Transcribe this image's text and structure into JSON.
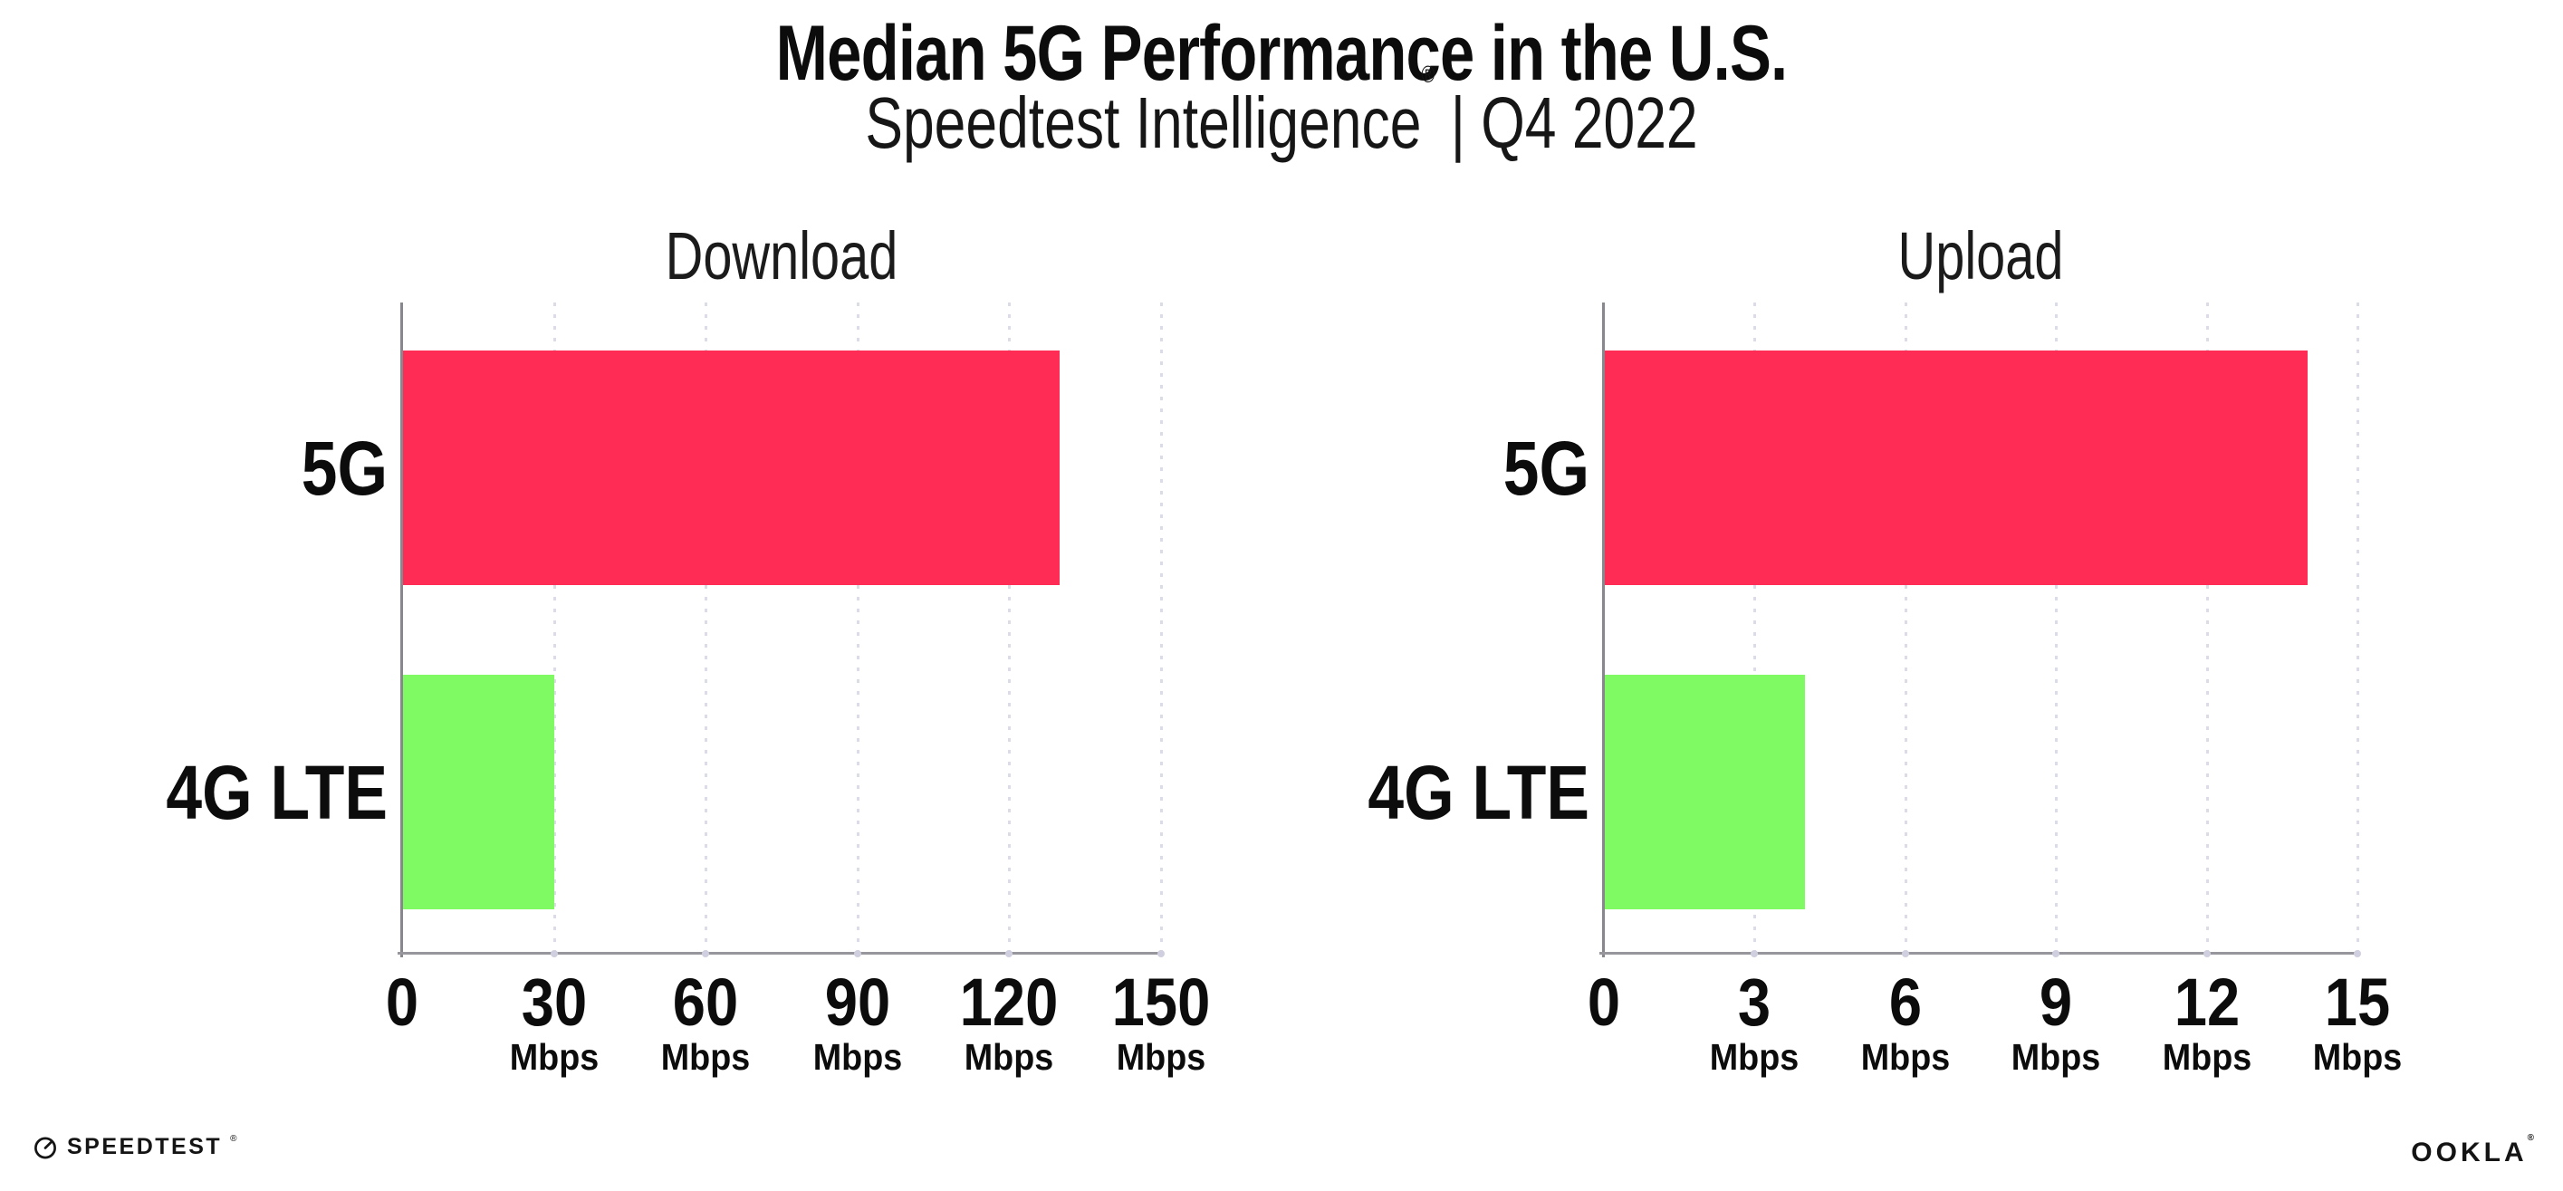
{
  "header": {
    "title": "Median 5G Performance in the U.S.",
    "subtitle_brand": "Speedtest Intelligence",
    "subtitle_reg": "®",
    "subtitle_rest": " | Q4 2022"
  },
  "chart_data": [
    {
      "type": "bar",
      "orientation": "horizontal",
      "title": "Download",
      "categories": [
        "5G",
        "4G LTE"
      ],
      "values": [
        130,
        30
      ],
      "value_unit": "Mbps",
      "xlim": [
        0,
        150
      ],
      "ticks": [
        0,
        30,
        60,
        90,
        120,
        150
      ],
      "tick_unit": "Mbps",
      "bar_colors": [
        "#ff2d56",
        "#80fa62"
      ],
      "grid": "dotted-vertical-lines",
      "legend": "none"
    },
    {
      "type": "bar",
      "orientation": "horizontal",
      "title": "Upload",
      "categories": [
        "5G",
        "4G LTE"
      ],
      "values": [
        14,
        4
      ],
      "value_unit": "Mbps",
      "xlim": [
        0,
        15
      ],
      "ticks": [
        0,
        3,
        6,
        9,
        12,
        15
      ],
      "tick_unit": "Mbps",
      "bar_colors": [
        "#ff2d56",
        "#80fa62"
      ],
      "grid": "dotted-vertical-lines",
      "legend": "none"
    }
  ],
  "footer": {
    "speedtest_label": "SPEEDTEST",
    "speedtest_reg": "®",
    "ookla_label": "OOKLA",
    "ookla_reg": "®"
  },
  "colors": {
    "bar_5g": "#ff2d56",
    "bar_4g_lte": "#80fa62",
    "gridline": "#dcdce8",
    "axis_y": "#87878d",
    "axis_x": "#96969c",
    "text": "#0c0c0c"
  }
}
